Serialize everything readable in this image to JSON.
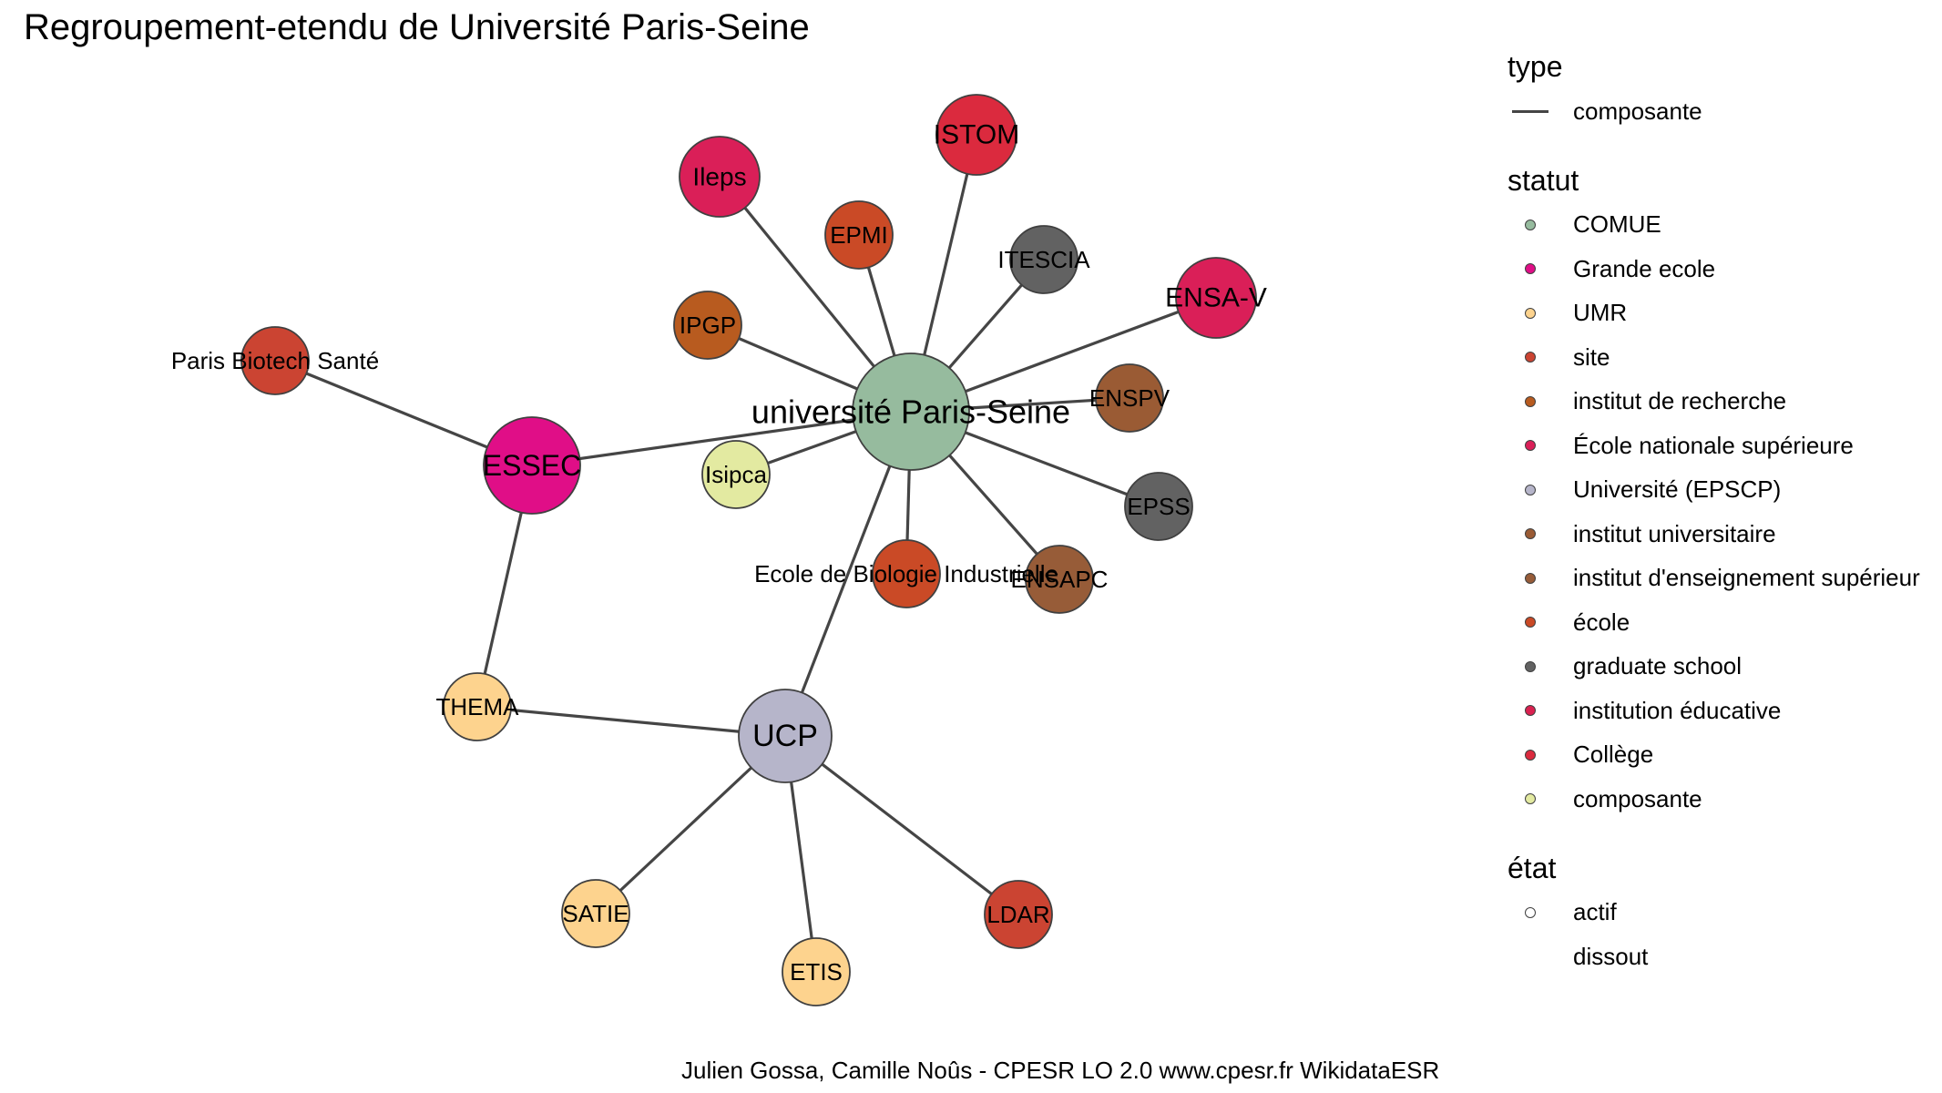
{
  "title": "Regroupement-etendu de Université Paris-Seine",
  "caption": "Julien Gossa, Camille Noûs - CPESR LO 2.0 www.cpesr.fr WikidataESR",
  "colors": {
    "COMUE": "#96BB9E",
    "Grande ecole": "#E00E87",
    "UMR": "#FDD38E",
    "site": "#CB4432",
    "institut de recherche": "#B85B1F",
    "École nationale supérieure": "#DA1F58",
    "Université (EPSCP)": "#B6B5CA",
    "institut universitaire": "#9A5B34",
    "institut d'enseignement supérieur": "#975C38",
    "école": "#CA4A26",
    "graduate school": "#626262",
    "institution éducative": "#DA2150",
    "Collège": "#DB2A3E",
    "composante": "#E3EAA1"
  },
  "legend": {
    "type": {
      "title": "type",
      "items": [
        {
          "label": "composante",
          "symbol": "line"
        }
      ]
    },
    "statut": {
      "title": "statut",
      "items": [
        {
          "label": "COMUE",
          "color": "#96BB9E"
        },
        {
          "label": "Grande ecole",
          "color": "#E00E87"
        },
        {
          "label": "UMR",
          "color": "#FDD38E"
        },
        {
          "label": "site",
          "color": "#CB4432"
        },
        {
          "label": "institut de recherche",
          "color": "#B85B1F"
        },
        {
          "label": "École nationale supérieure",
          "color": "#DA1F58"
        },
        {
          "label": "Université (EPSCP)",
          "color": "#B6B5CA"
        },
        {
          "label": "institut universitaire",
          "color": "#9A5B34"
        },
        {
          "label": "institut d'enseignement supérieur",
          "color": "#975C38"
        },
        {
          "label": "école",
          "color": "#CA4A26"
        },
        {
          "label": "graduate school",
          "color": "#626262"
        },
        {
          "label": "institution éducative",
          "color": "#DA2150"
        },
        {
          "label": "Collège",
          "color": "#DB2A3E"
        },
        {
          "label": "composante",
          "color": "#E3EAA1"
        }
      ]
    },
    "etat": {
      "title": "état",
      "items": [
        {
          "label": "actif",
          "symbol": "hollow"
        },
        {
          "label": "dissout",
          "symbol": "none"
        }
      ]
    }
  },
  "nodes": [
    {
      "id": "upsn",
      "label": "université Paris-Seine",
      "statut": "COMUE"
    },
    {
      "id": "ileps",
      "label": "Ileps",
      "statut": "École nationale supérieure"
    },
    {
      "id": "istom",
      "label": "ISTOM",
      "statut": "Collège"
    },
    {
      "id": "epmi",
      "label": "EPMI",
      "statut": "école"
    },
    {
      "id": "itescia",
      "label": "ITESCIA",
      "statut": "graduate school"
    },
    {
      "id": "ensav",
      "label": "ENSA-V",
      "statut": "École nationale supérieure"
    },
    {
      "id": "ipgp",
      "label": "IPGP",
      "statut": "institut de recherche"
    },
    {
      "id": "pbs",
      "label": "Paris Biotech Santé",
      "statut": "site"
    },
    {
      "id": "enspv",
      "label": "ENSPV",
      "statut": "institut universitaire"
    },
    {
      "id": "essec",
      "label": "ESSEC",
      "statut": "Grande ecole"
    },
    {
      "id": "isipca",
      "label": "Isipca",
      "statut": "composante"
    },
    {
      "id": "epss",
      "label": "EPSS",
      "statut": "graduate school"
    },
    {
      "id": "ebi",
      "label": "Ecole de Biologie Industrielle",
      "statut": "école"
    },
    {
      "id": "ensapc",
      "label": "ENSAPC",
      "statut": "institut d'enseignement supérieur"
    },
    {
      "id": "thema",
      "label": "THEMA",
      "statut": "UMR"
    },
    {
      "id": "ucp",
      "label": "UCP",
      "statut": "Université (EPSCP)"
    },
    {
      "id": "satie",
      "label": "SATIE",
      "statut": "UMR"
    },
    {
      "id": "etis",
      "label": "ETIS",
      "statut": "UMR"
    },
    {
      "id": "ldar",
      "label": "LDAR",
      "statut": "site"
    }
  ],
  "edges": [
    {
      "from": "upsn",
      "to": "ileps"
    },
    {
      "from": "upsn",
      "to": "istom"
    },
    {
      "from": "upsn",
      "to": "epmi"
    },
    {
      "from": "upsn",
      "to": "itescia"
    },
    {
      "from": "upsn",
      "to": "ensav"
    },
    {
      "from": "upsn",
      "to": "ipgp"
    },
    {
      "from": "upsn",
      "to": "enspv"
    },
    {
      "from": "upsn",
      "to": "essec"
    },
    {
      "from": "upsn",
      "to": "isipca"
    },
    {
      "from": "upsn",
      "to": "epss"
    },
    {
      "from": "upsn",
      "to": "ebi"
    },
    {
      "from": "upsn",
      "to": "ensapc"
    },
    {
      "from": "upsn",
      "to": "ucp"
    },
    {
      "from": "essec",
      "to": "pbs"
    },
    {
      "from": "essec",
      "to": "thema"
    },
    {
      "from": "ucp",
      "to": "thema"
    },
    {
      "from": "ucp",
      "to": "satie"
    },
    {
      "from": "ucp",
      "to": "etis"
    },
    {
      "from": "ucp",
      "to": "ldar"
    }
  ]
}
